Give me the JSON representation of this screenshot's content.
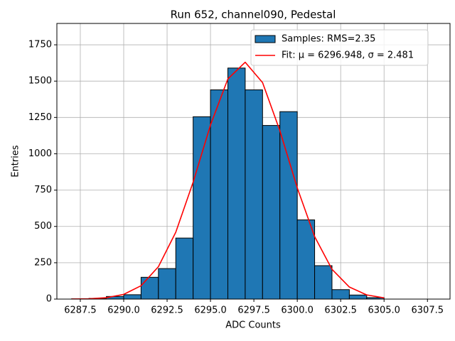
{
  "chart_data": {
    "type": "histogram",
    "title": "Run 652, channel090, Pedestal",
    "xlabel": "ADC Counts",
    "ylabel": "Entries",
    "xlim": [
      6286.15,
      6308.8
    ],
    "ylim": [
      0,
      1897
    ],
    "xticks": [
      {
        "value": 6287.5,
        "label": "6287.5"
      },
      {
        "value": 6290,
        "label": "6290.0"
      },
      {
        "value": 6292.5,
        "label": "6292.5"
      },
      {
        "value": 6295,
        "label": "6295.0"
      },
      {
        "value": 6297.5,
        "label": "6297.5"
      },
      {
        "value": 6300,
        "label": "6300.0"
      },
      {
        "value": 6302.5,
        "label": "6302.5"
      },
      {
        "value": 6305,
        "label": "6305.0"
      },
      {
        "value": 6307.5,
        "label": "6307.5"
      }
    ],
    "yticks": [
      0,
      250,
      500,
      750,
      1000,
      1250,
      1500,
      1750
    ],
    "grid": true,
    "legend": "upper right",
    "series": [
      {
        "name": "Samples: RMS=2.35",
        "type": "histogram",
        "color": "#1f77b4",
        "bins": [
          6287,
          6288,
          6289,
          6290,
          6291,
          6292,
          6293,
          6294,
          6295,
          6296,
          6297,
          6298,
          6299,
          6300,
          6301,
          6302,
          6303,
          6304,
          6305
        ],
        "values": [
          2,
          5,
          18,
          30,
          150,
          210,
          420,
          1255,
          1440,
          1590,
          1440,
          1195,
          1290,
          545,
          230,
          65,
          28,
          10
        ]
      },
      {
        "name": "Fit: μ = 6296.948, σ = 2.481",
        "type": "line",
        "color": "#ff0000",
        "x": [
          6287,
          6288,
          6289,
          6290,
          6291,
          6292,
          6293,
          6294,
          6295,
          6296,
          6297,
          6298,
          6299,
          6300,
          6301,
          6302,
          6303,
          6304,
          6305
        ],
        "values": [
          0.5,
          2.4,
          9.6,
          32.3,
          92,
          223,
          460,
          805,
          1198,
          1515,
          1630,
          1490,
          1158,
          765,
          430,
          205,
          83,
          28.7,
          8.4
        ]
      }
    ]
  }
}
